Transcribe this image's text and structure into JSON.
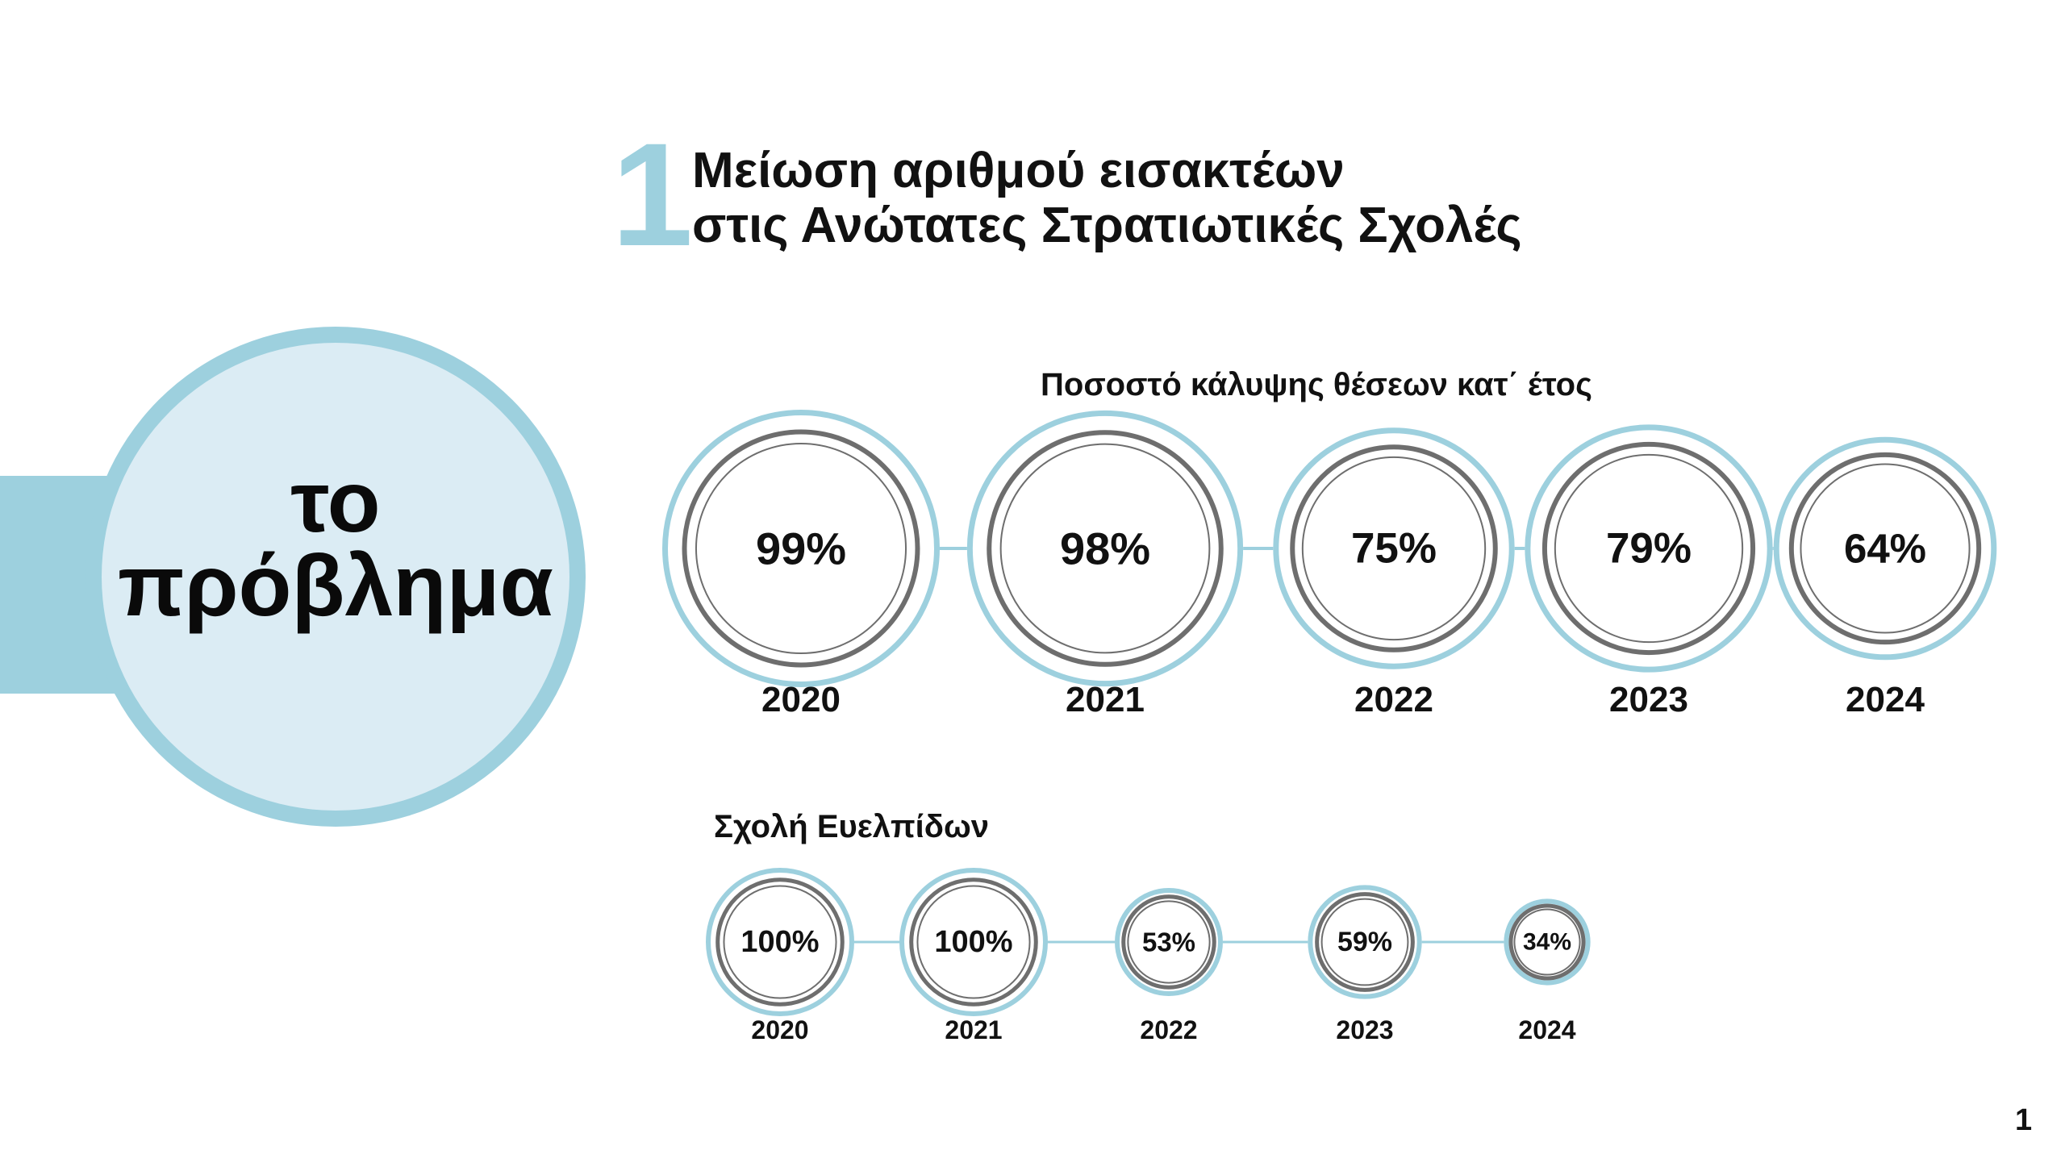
{
  "slide": {
    "number_mark": "1",
    "title_line1": "Μείωση αριθμού εισακτέων",
    "title_line2": "στις Ανώτατες Στρατιωτικές Σχολές",
    "hero_line1": "το",
    "hero_line2": "πρόβλημα",
    "page_number": "1"
  },
  "colors": {
    "accent_blue": "#9dd0de",
    "light_blue_fill": "#dbecf4",
    "ring_gray": "#6e6e6e"
  },
  "chart_data": [
    {
      "type": "bubble-timeline",
      "title": "Ποσοστό κάλυψης θέσεων κατ΄ έτος",
      "categories": [
        "2020",
        "2021",
        "2022",
        "2023",
        "2024"
      ],
      "values": [
        99,
        98,
        75,
        79,
        64
      ],
      "labels": [
        "99%",
        "98%",
        "75%",
        "79%",
        "64%"
      ]
    },
    {
      "type": "bubble-timeline",
      "title": "Σχολή Ευελπίδων",
      "categories": [
        "2020",
        "2021",
        "2022",
        "2023",
        "2024"
      ],
      "values": [
        100,
        100,
        53,
        59,
        34
      ],
      "labels": [
        "100%",
        "100%",
        "53%",
        "59%",
        "34%"
      ]
    }
  ]
}
